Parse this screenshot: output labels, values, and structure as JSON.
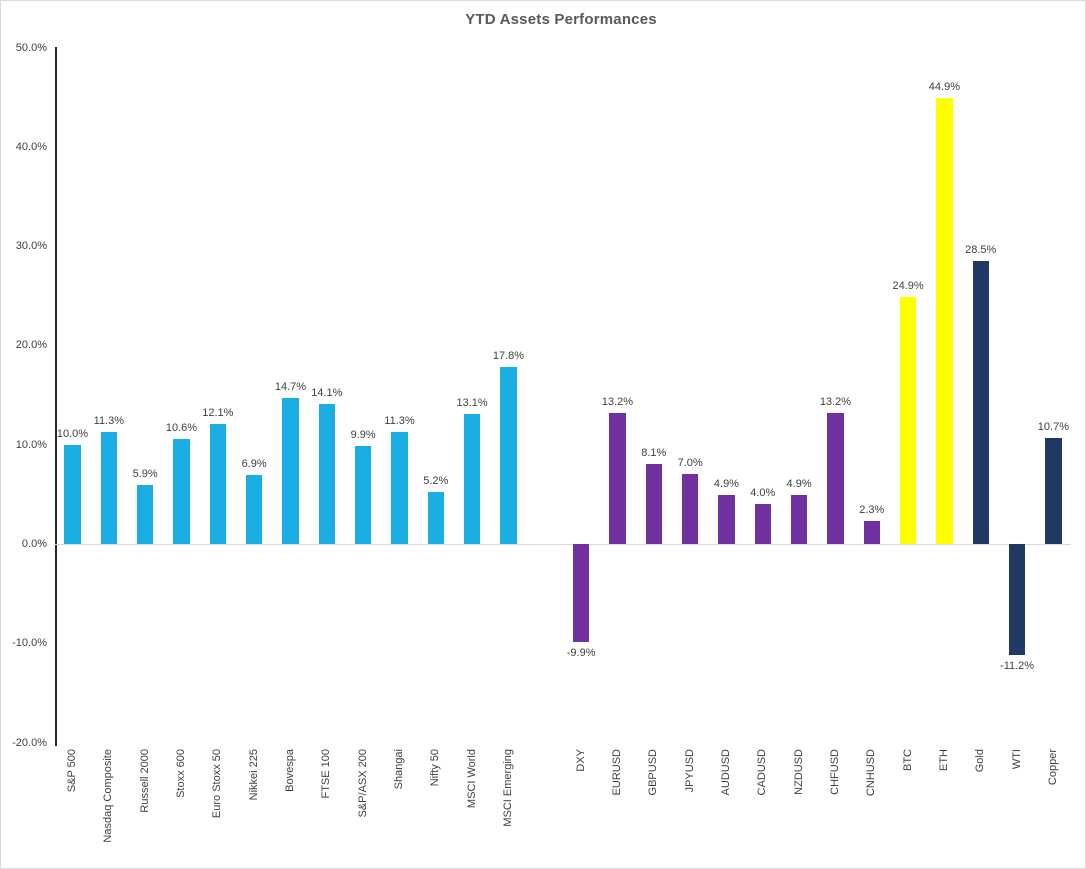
{
  "chart_data": {
    "type": "bar",
    "title": "YTD Assets Performances",
    "xlabel": "",
    "ylabel": "",
    "ylim": [
      -20,
      50
    ],
    "ytick_interval": 10,
    "yticks": [
      "50.0%",
      "40.0%",
      "30.0%",
      "20.0%",
      "10.0%",
      "0.0%",
      "-10.0%",
      "-20.0%"
    ],
    "legend_position": "none",
    "gridlines": "zero_axis_only",
    "value_labels": "shown_outside_end",
    "category_label_rotation": -90,
    "group_colors": {
      "equity_index": "#1BAEE5",
      "currency": "#7030A0",
      "crypto": "#FFFF00",
      "commodity": "#1F3864"
    },
    "bars": [
      {
        "label": "S&P 500",
        "value": 10.0,
        "value_label": "10.0%",
        "group": "equity_index"
      },
      {
        "label": "Nasdaq Composite",
        "value": 11.3,
        "value_label": "11.3%",
        "group": "equity_index"
      },
      {
        "label": "Russell 2000",
        "value": 5.9,
        "value_label": "5.9%",
        "group": "equity_index"
      },
      {
        "label": "Stoxx 600",
        "value": 10.6,
        "value_label": "10.6%",
        "group": "equity_index"
      },
      {
        "label": "Euro Stoxx 50",
        "value": 12.1,
        "value_label": "12.1%",
        "group": "equity_index"
      },
      {
        "label": "Nikkei 225",
        "value": 6.9,
        "value_label": "6.9%",
        "group": "equity_index"
      },
      {
        "label": "Bovespa",
        "value": 14.7,
        "value_label": "14.7%",
        "group": "equity_index"
      },
      {
        "label": "FTSE 100",
        "value": 14.1,
        "value_label": "14.1%",
        "group": "equity_index"
      },
      {
        "label": "S&P/ASX 200",
        "value": 9.9,
        "value_label": "9.9%",
        "group": "equity_index"
      },
      {
        "label": "Shangai",
        "value": 11.3,
        "value_label": "11.3%",
        "group": "equity_index"
      },
      {
        "label": "Nifty 50",
        "value": 5.2,
        "value_label": "5.2%",
        "group": "equity_index"
      },
      {
        "label": "MSCI World",
        "value": 13.1,
        "value_label": "13.1%",
        "group": "equity_index"
      },
      {
        "label": "MSCI Emerging",
        "value": 17.8,
        "value_label": "17.8%",
        "group": "equity_index"
      },
      {
        "label": "",
        "value": null,
        "value_label": "",
        "group": "spacer"
      },
      {
        "label": "DXY",
        "value": -9.9,
        "value_label": "-9.9%",
        "group": "currency"
      },
      {
        "label": "EURUSD",
        "value": 13.2,
        "value_label": "13.2%",
        "group": "currency"
      },
      {
        "label": "GBPUSD",
        "value": 8.1,
        "value_label": "8.1%",
        "group": "currency"
      },
      {
        "label": "JPYUSD",
        "value": 7.0,
        "value_label": "7.0%",
        "group": "currency"
      },
      {
        "label": "AUDUSD",
        "value": 4.9,
        "value_label": "4.9%",
        "group": "currency"
      },
      {
        "label": "CADUSD",
        "value": 4.0,
        "value_label": "4.0%",
        "group": "currency"
      },
      {
        "label": "NZDUSD",
        "value": 4.9,
        "value_label": "4.9%",
        "group": "currency"
      },
      {
        "label": "CHFUSD",
        "value": 13.2,
        "value_label": "13.2%",
        "group": "currency"
      },
      {
        "label": "CNHUSD",
        "value": 2.3,
        "value_label": "2.3%",
        "group": "currency"
      },
      {
        "label": "BTC",
        "value": 24.9,
        "value_label": "24.9%",
        "group": "crypto"
      },
      {
        "label": "ETH",
        "value": 44.9,
        "value_label": "44.9%",
        "group": "crypto"
      },
      {
        "label": "Gold",
        "value": 28.5,
        "value_label": "28.5%",
        "group": "commodity"
      },
      {
        "label": "WTI",
        "value": -11.2,
        "value_label": "-11.2%",
        "group": "commodity"
      },
      {
        "label": "Copper",
        "value": 10.7,
        "value_label": "10.7%",
        "group": "commodity"
      }
    ]
  }
}
